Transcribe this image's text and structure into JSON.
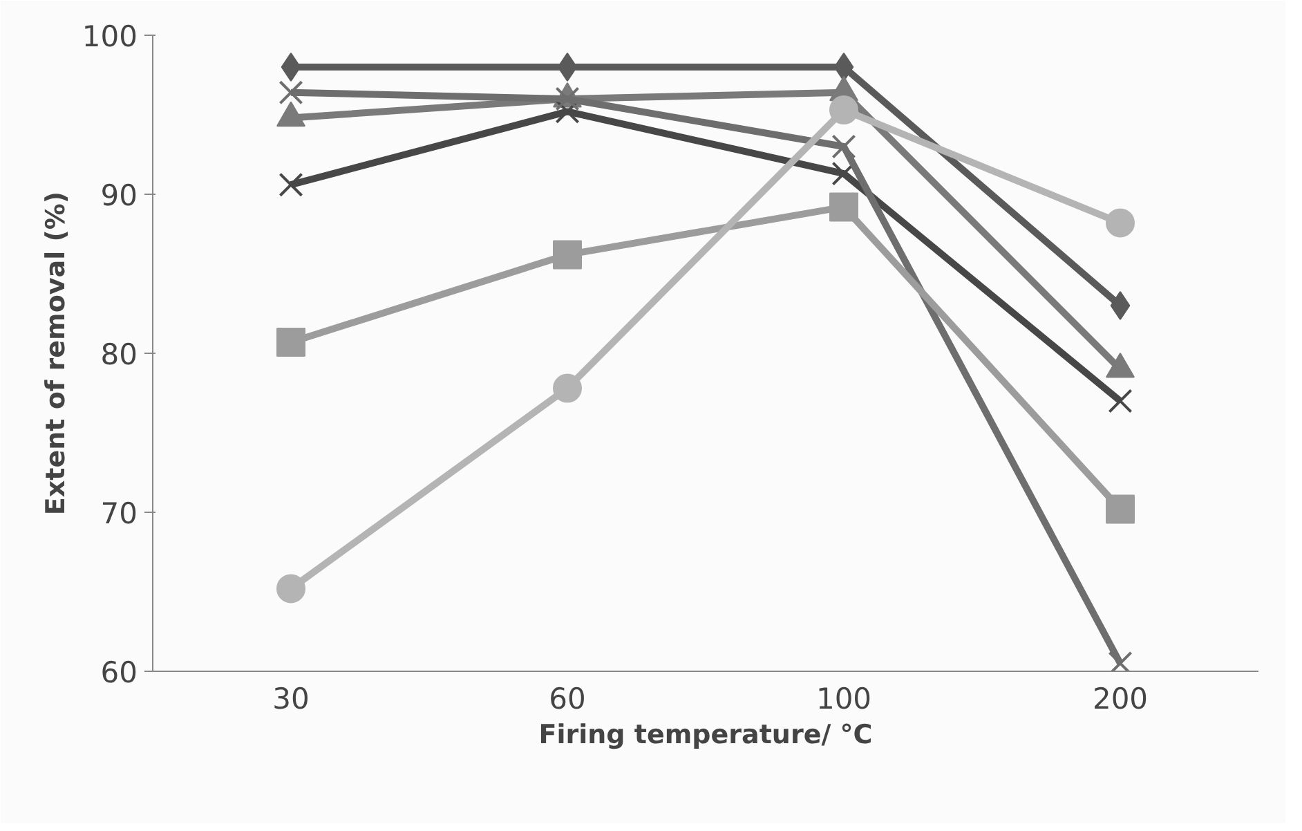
{
  "chart_data": {
    "type": "line",
    "xlabel": "Firing temperature/ °C",
    "ylabel": "Extent of removal (%)",
    "categories": [
      "30",
      "60",
      "100",
      "200"
    ],
    "series": [
      {
        "color": "#5a5a5a",
        "marker": "diamond",
        "values": [
          98,
          98,
          98,
          83
        ]
      },
      {
        "color": "#7a7a7a",
        "marker": "triangle",
        "values": [
          94.8,
          96,
          96.4,
          79
        ]
      },
      {
        "color": "#474747",
        "marker": "cross",
        "values": [
          90.6,
          95.2,
          91.3,
          77
        ]
      },
      {
        "color": "#6e6e6e",
        "marker": "cross",
        "values": [
          96.4,
          96,
          93,
          60.5
        ]
      },
      {
        "color": "#9c9c9c",
        "marker": "square",
        "values": [
          80.7,
          86.2,
          89.2,
          70.2
        ]
      },
      {
        "color": "#b4b4b4",
        "marker": "circle",
        "values": [
          65.2,
          77.8,
          95.3,
          88.2
        ]
      }
    ],
    "ylim": [
      60,
      100
    ],
    "yticks": [
      60,
      70,
      80,
      90,
      100
    ],
    "grid": false
  }
}
